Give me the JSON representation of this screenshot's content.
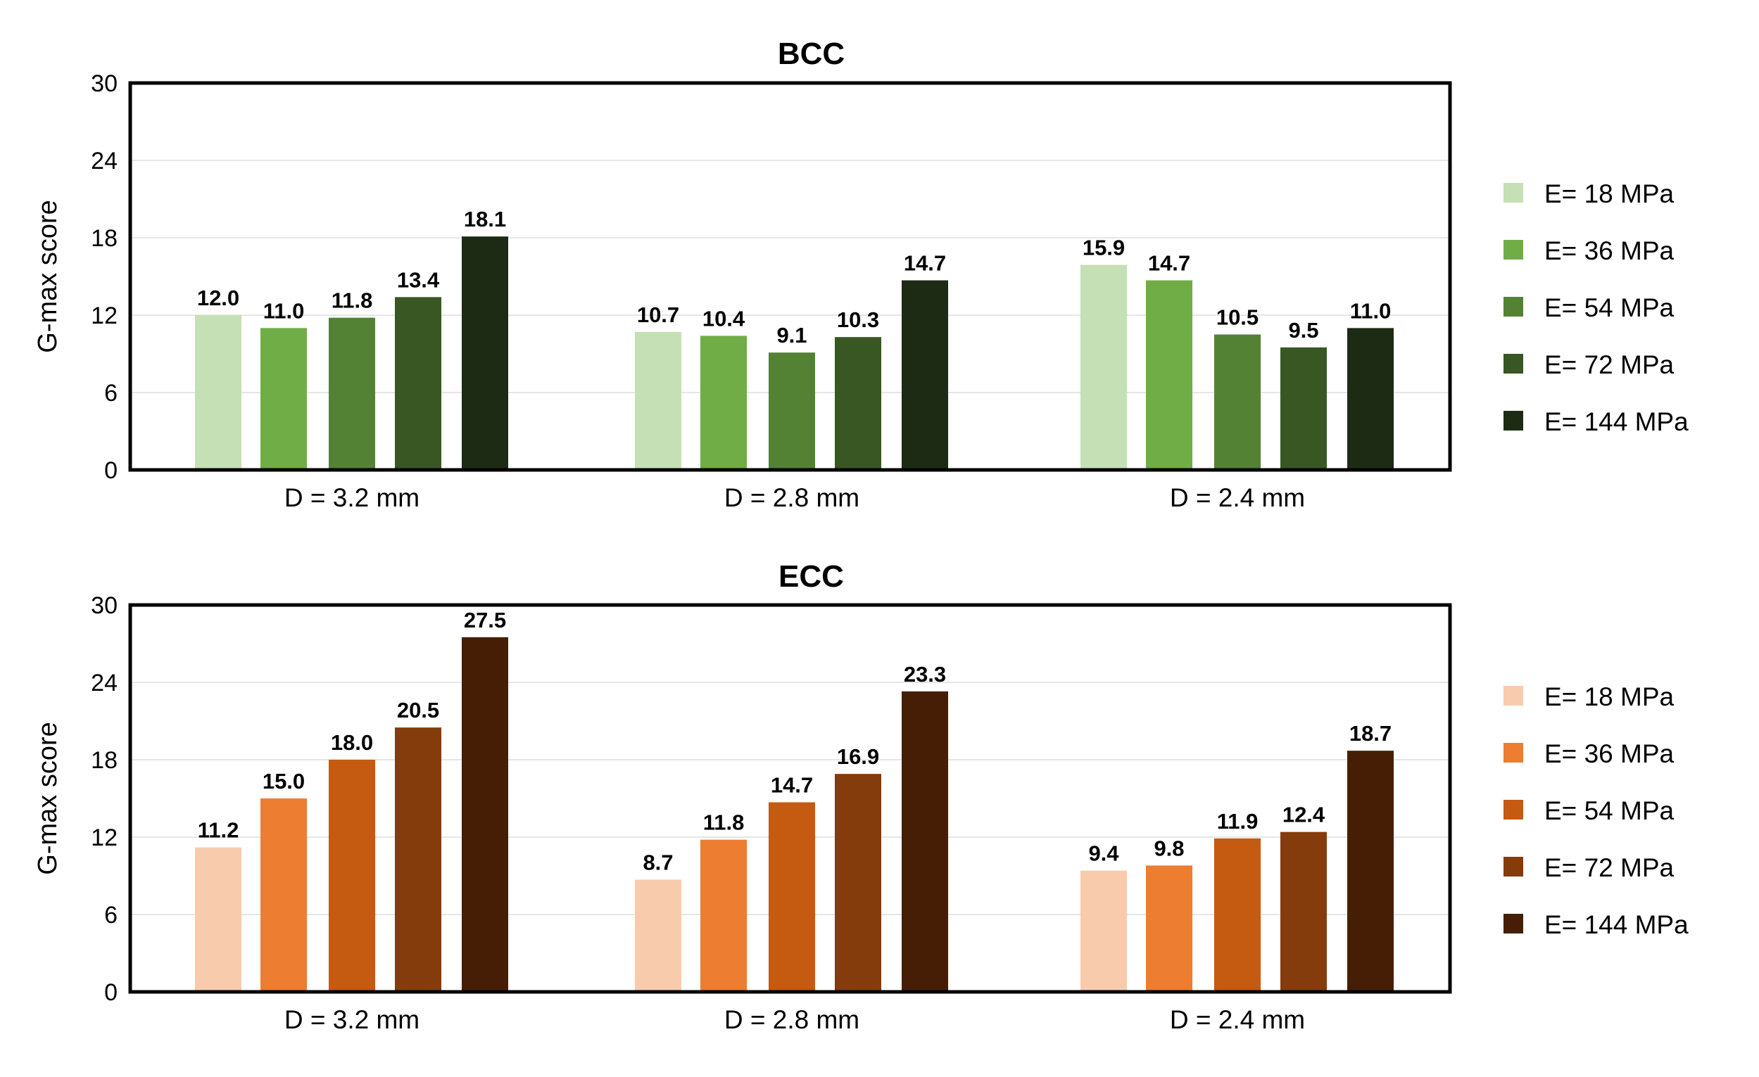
{
  "chart_data": [
    {
      "type": "bar",
      "title": "BCC",
      "ylabel": "G-max score",
      "ylim": [
        0,
        30
      ],
      "yticks": [
        0,
        6,
        12,
        18,
        24,
        30
      ],
      "grid": "horizontal",
      "legend_position": "right",
      "categories": [
        "D = 3.2 mm",
        "D = 2.8 mm",
        "D = 2.4 mm"
      ],
      "series": [
        {
          "name": "E= 18 MPa",
          "color": "#c5e0b4",
          "values": [
            12.0,
            10.7,
            15.9
          ]
        },
        {
          "name": "E= 36 MPa",
          "color": "#70ad47",
          "values": [
            11.0,
            10.4,
            14.7
          ]
        },
        {
          "name": "E= 54 MPa",
          "color": "#548235",
          "values": [
            11.8,
            9.1,
            10.5
          ]
        },
        {
          "name": "E= 72 MPa",
          "color": "#385723",
          "values": [
            13.4,
            10.3,
            9.5
          ]
        },
        {
          "name": "E= 144 MPa",
          "color": "#1e2b14",
          "values": [
            18.1,
            14.7,
            11.0
          ]
        }
      ]
    },
    {
      "type": "bar",
      "title": "ECC",
      "ylabel": "G-max score",
      "ylim": [
        0,
        30
      ],
      "yticks": [
        0,
        6,
        12,
        18,
        24,
        30
      ],
      "grid": "horizontal",
      "legend_position": "right",
      "categories": [
        "D = 3.2 mm",
        "D = 2.8 mm",
        "D = 2.4 mm"
      ],
      "series": [
        {
          "name": "E= 18 MPa",
          "color": "#f8cbad",
          "values": [
            11.2,
            8.7,
            9.4
          ]
        },
        {
          "name": "E= 36 MPa",
          "color": "#ed7d31",
          "values": [
            15.0,
            11.8,
            9.8
          ]
        },
        {
          "name": "E= 54 MPa",
          "color": "#c55a11",
          "values": [
            18.0,
            14.7,
            11.9
          ]
        },
        {
          "name": "E= 72 MPa",
          "color": "#843c0c",
          "values": [
            20.5,
            16.9,
            12.4
          ]
        },
        {
          "name": "E= 144 MPa",
          "color": "#461e06",
          "values": [
            27.5,
            23.3,
            18.7
          ]
        }
      ]
    }
  ]
}
